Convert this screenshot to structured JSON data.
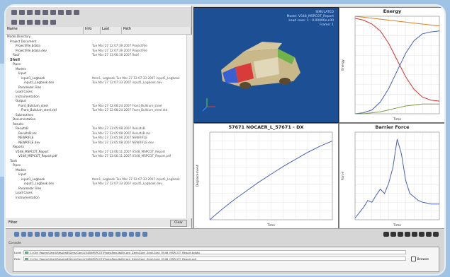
{
  "tree": {
    "columns": [
      "Name",
      "Info",
      "Last",
      "Path"
    ],
    "rows": [
      {
        "label": "Model Directory",
        "info": "",
        "indent": 0,
        "bold": false
      },
      {
        "label": "Project Document",
        "info": "",
        "indent": 2,
        "bold": false
      },
      {
        "label": "ProjectFile.bdata",
        "info": "Tue Mar 27 12:07:39 2007 ProjectFile",
        "indent": 6,
        "bold": false
      },
      {
        "label": "ProjectFile.bdata.dev",
        "info": "Tue Mar 27 12:07:39 2007 ProjectFile",
        "indent": 6,
        "bold": false
      },
      {
        "label": "Roof",
        "info": "Tue Mar 27 13:06:18 2007 Roof",
        "indent": 4,
        "bold": false
      },
      {
        "label": "Shell",
        "info": "",
        "indent": 2,
        "bold": true
      },
      {
        "label": "Pipes",
        "info": "",
        "indent": 4,
        "bold": false
      },
      {
        "label": "Models",
        "info": "",
        "indent": 6,
        "bold": false
      },
      {
        "label": "Input",
        "info": "",
        "indent": 8,
        "bold": false
      },
      {
        "label": "input1_Logbook",
        "info": "Item1, Logbook Tue Mar 27 12:07:33 2007 input1_Logbook",
        "indent": 10,
        "bold": false
      },
      {
        "label": "input1_Logbook.dev",
        "info": "Tue Mar 27 12:07:33 2007 input1_Logbook.dev",
        "indent": 12,
        "bold": false
      },
      {
        "label": "Parameter Files",
        "info": "",
        "indent": 8,
        "bold": false
      },
      {
        "label": "Load Cases",
        "info": "",
        "indent": 6,
        "bold": false
      },
      {
        "label": "Instrumentation",
        "info": "",
        "indent": 6,
        "bold": false
      },
      {
        "label": "Output",
        "info": "",
        "indent": 6,
        "bold": false
      },
      {
        "label": "Front_Bulklum_steel",
        "info": "Tue Mar 27 12:08:24 2007 Front_Bulklum_steel",
        "indent": 8,
        "bold": false
      },
      {
        "label": "Front_Bulklum_steel.std",
        "info": "Tue Mar 27 12:08:24 2007 Front_Bulklum_steel.std",
        "indent": 10,
        "bold": false
      },
      {
        "label": "Subroutines",
        "info": "",
        "indent": 6,
        "bold": false
      },
      {
        "label": "Documentation",
        "info": "",
        "indent": 4,
        "bold": false
      },
      {
        "label": "Results",
        "info": "",
        "indent": 4,
        "bold": false
      },
      {
        "label": "ResultsB",
        "info": "Tue Mar 27 13:05:08 2007 ResultsB",
        "indent": 6,
        "bold": false
      },
      {
        "label": "ResultsB.res",
        "info": "Tue Mar 27 13:05:08 2007 ResultsB.res",
        "indent": 8,
        "bold": false
      },
      {
        "label": "NEWRIFLE",
        "info": "Tue Mar 27 13:05:08 2007 NEWRIFLE",
        "indent": 8,
        "bold": false
      },
      {
        "label": "NEWRIFLE.dev",
        "info": "Tue Mar 27 13:05:08 2007 NEWRIFLE.dev",
        "indent": 8,
        "bold": false
      },
      {
        "label": "Reports",
        "info": "",
        "indent": 4,
        "bold": false
      },
      {
        "label": "V548_MSPCOT_Report",
        "info": "Tue Mar 27 13:06:11 2007 V548_MSPCOT_Report",
        "indent": 6,
        "bold": false
      },
      {
        "label": "V548_MSPCOT_Report.pdf",
        "info": "Tue Mar 27 13:06:11 2007 V548_MSPCOT_Report.pdf",
        "indent": 8,
        "bold": false
      },
      {
        "label": "Tools",
        "info": "",
        "indent": 2,
        "bold": false
      },
      {
        "label": "Pipes",
        "info": "",
        "indent": 4,
        "bold": false
      },
      {
        "label": "Models",
        "info": "",
        "indent": 6,
        "bold": false
      },
      {
        "label": "Input",
        "info": "",
        "indent": 8,
        "bold": false
      },
      {
        "label": "input1_Logbook",
        "info": "Item1, Logbook Tue Mar 27 12:07:33 2007 input1_Logbook",
        "indent": 10,
        "bold": false
      },
      {
        "label": "input1_Logbook.dev",
        "info": "Tue Mar 27 12:07:33 2007 input1_Logbook.dev",
        "indent": 12,
        "bold": false
      },
      {
        "label": "Parameter Files",
        "info": "",
        "indent": 8,
        "bold": false
      },
      {
        "label": "Load Cases",
        "info": "",
        "indent": 6,
        "bold": false
      },
      {
        "label": "Instrumentation",
        "info": "",
        "indent": 6,
        "bold": false
      }
    ],
    "filter_label": "Filter",
    "filter_button": "Clear"
  },
  "viewport": {
    "lines": [
      "SIMULATED",
      "Model: V548_MSPCOT_Report",
      "Load case: 1 : 0.00000e+00",
      "Frame: 1"
    ]
  },
  "plots": {
    "energy": {
      "title": "Energy",
      "xlabel": "Time",
      "ylabel": "Energy"
    },
    "disp": {
      "title": "57671 NOCAER_L_57671 - DX",
      "xlabel": "Time",
      "ylabel": "Displacement"
    },
    "barrier": {
      "title": "Barrier Force",
      "xlabel": "Time",
      "ylabel": "Force"
    }
  },
  "chart_data": [
    {
      "type": "line",
      "title": "Energy",
      "xlabel": "Time",
      "ylabel": "Energy",
      "x": [
        0,
        1,
        2,
        3,
        4,
        5,
        6,
        7,
        8,
        9,
        10
      ],
      "series": [
        {
          "values": [
            98,
            96,
            92,
            85,
            72,
            55,
            38,
            25,
            17,
            14,
            13
          ],
          "color": "#d83030"
        },
        {
          "values": [
            0,
            1,
            4,
            12,
            26,
            44,
            62,
            75,
            82,
            84,
            85
          ],
          "color": "#4a5fb8"
        },
        {
          "values": [
            100,
            99,
            98,
            97,
            96,
            95,
            94,
            93,
            92,
            91,
            90
          ],
          "color": "#e08020"
        },
        {
          "values": [
            0,
            0,
            1,
            2,
            4,
            6,
            8,
            9,
            10,
            10,
            10
          ],
          "color": "#7aa040"
        }
      ],
      "ylim": [
        0,
        100
      ]
    },
    {
      "type": "line",
      "title": "57671 NOCAER_L_57671 - DX",
      "xlabel": "Time",
      "ylabel": "Displacement",
      "x": [
        0,
        1,
        2,
        3,
        4,
        5,
        6,
        7,
        8,
        9,
        10
      ],
      "series": [
        {
          "values": [
            0,
            12,
            23,
            33,
            43,
            52,
            61,
            69,
            77,
            84,
            90
          ],
          "color": "#4a5fb8"
        }
      ],
      "ylim": [
        0,
        100
      ]
    },
    {
      "type": "line",
      "title": "Barrier Force",
      "xlabel": "Time",
      "ylabel": "Force",
      "x": [
        0,
        0.5,
        1,
        1.5,
        2,
        2.5,
        3,
        3.5,
        4,
        4.5,
        5,
        5.5,
        6,
        6.5,
        7,
        7.5,
        8,
        8.5,
        9,
        9.5,
        10
      ],
      "series": [
        {
          "values": [
            2,
            8,
            14,
            22,
            20,
            28,
            35,
            30,
            42,
            60,
            92,
            75,
            45,
            30,
            26,
            22,
            20,
            19,
            18,
            18,
            18
          ],
          "color": "#4a5fb8"
        }
      ],
      "ylim": [
        0,
        100
      ]
    }
  ],
  "console": {
    "label": "Console",
    "prefix1": "Load:",
    "prefix2": "Path:",
    "cmd1": "C:\\Old_Papers\\Shell\\ResultsB\\Sims\\Cars\\V548\\MSPCOT\\Pipes\\ResultsB\\Cont_Zero\\Cont_Zero\\Cont_V548_MSPCOT_Report.bdata",
    "cmd2": "C:\\Old_Papers\\Shell\\ResultsB\\Sims\\Cars\\V548\\MSPCOT\\Pipes\\ResultsB\\Cont_Zero\\Cont_Zero\\Cont_V548_MSPCOT_Report.pdf",
    "browse_label": "Browse"
  }
}
